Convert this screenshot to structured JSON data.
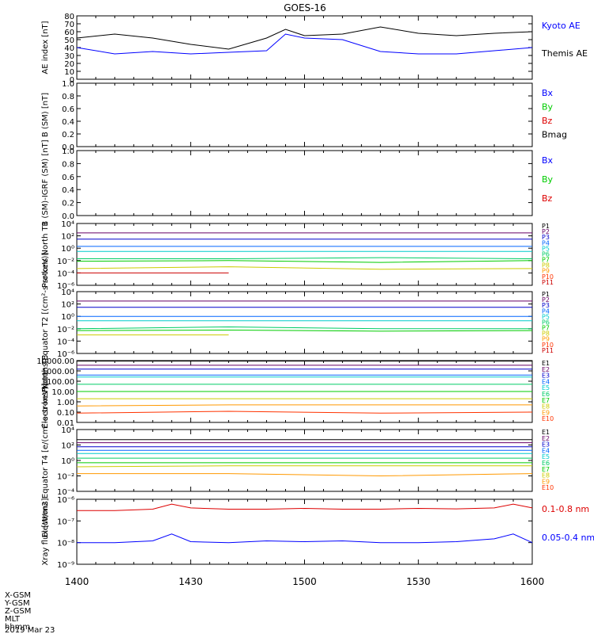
{
  "title": "GOES-16",
  "footer": {
    "row_labels": [
      "X-GSM",
      "Y-GSM",
      "Z-GSM",
      "MLT",
      "hhmm"
    ],
    "date": "2019 Mar 23"
  },
  "x_ticks": [
    "1400",
    "1430",
    "1500",
    "1530",
    "1600"
  ],
  "colors": {
    "black": "#000000",
    "blue": "#0000ff",
    "green": "#00cc00",
    "red": "#dd0000",
    "P1": "#000000",
    "P2": "#660066",
    "P3": "#0000cc",
    "P4": "#0066ff",
    "P5": "#00cccc",
    "P6": "#00cc66",
    "P7": "#00cc00",
    "P8": "#cccc00",
    "P9": "#ff9900",
    "P10": "#ff3300",
    "P11": "#cc0000"
  },
  "chart_data": [
    {
      "type": "line",
      "ylabel": "AE index [nT]",
      "ylim": [
        0,
        80
      ],
      "y_ticks": [
        "0",
        "10",
        "20",
        "30",
        "40",
        "50",
        "60",
        "70",
        "80"
      ],
      "legend": [
        "Kyoto AE",
        "Themis AE"
      ],
      "x_minutes": [
        0,
        10,
        20,
        30,
        40,
        50,
        55,
        60,
        70,
        80,
        90,
        100,
        110,
        120
      ],
      "series": [
        {
          "name": "Themis AE",
          "color_key": "black",
          "values": [
            52,
            57,
            52,
            44,
            38,
            52,
            63,
            55,
            57,
            66,
            58,
            55,
            58,
            60
          ]
        },
        {
          "name": "Kyoto AE",
          "color_key": "blue",
          "values": [
            40,
            32,
            35,
            32,
            34,
            36,
            57,
            52,
            50,
            35,
            32,
            32,
            36,
            40
          ]
        }
      ]
    },
    {
      "type": "line",
      "ylabel": "B (SM) [nT]",
      "ylim": [
        0,
        1
      ],
      "y_ticks": [
        "0.0",
        "0.2",
        "0.4",
        "0.6",
        "0.8",
        "1.0"
      ],
      "legend": [
        "Bx",
        "By",
        "Bz",
        "Bmag"
      ],
      "series": []
    },
    {
      "type": "line",
      "ylabel": "B (SM)-IGRF (SM) [nT]",
      "ylim": [
        0,
        1
      ],
      "y_ticks": [
        "0.0",
        "0.2",
        "0.4",
        "0.6",
        "0.8",
        "1.0"
      ],
      "legend": [
        "Bx",
        "By",
        "Bz"
      ],
      "series": []
    },
    {
      "type": "line",
      "ylabel": "Protons North T1",
      "scale": "log",
      "ylim": [
        1e-06,
        10000.0
      ],
      "y_ticks": [
        "10⁻⁶",
        "10⁻⁴",
        "10⁻²",
        "10⁰",
        "10²",
        "10⁴"
      ],
      "legend": [
        "P1",
        "P2",
        "P3",
        "P4",
        "P5",
        "P6",
        "P7",
        "P8",
        "P9",
        "P10",
        "P11"
      ],
      "series": [
        {
          "name": "P2",
          "values": [
            300,
            300,
            300,
            300
          ]
        },
        {
          "name": "P3",
          "values": [
            30,
            30,
            30,
            30
          ]
        },
        {
          "name": "P4",
          "values": [
            2,
            2,
            2,
            2
          ]
        },
        {
          "name": "P5",
          "values": [
            0.3,
            0.3,
            0.3,
            0.3
          ]
        },
        {
          "name": "P6",
          "values": [
            0.02,
            0.02,
            0.03,
            0.02
          ]
        },
        {
          "name": "P7",
          "values": [
            0.008,
            0.01,
            0.005,
            0.01
          ]
        },
        {
          "name": "P8",
          "values": [
            0.0005,
            0.001,
            0.0004,
            0.0005
          ]
        },
        {
          "name": "P11",
          "values": [
            0.0001,
            0.0001,
            null,
            null
          ]
        }
      ]
    },
    {
      "type": "line",
      "ylabel": "Protons Equator T2 [(cm²-s-sr-keV)]",
      "scale": "log",
      "ylim": [
        1e-06,
        10000.0
      ],
      "y_ticks": [
        "10⁻⁶",
        "10⁻⁴",
        "10⁻²",
        "10⁰",
        "10²",
        "10⁴"
      ],
      "legend": [
        "P1",
        "P2",
        "P3",
        "P4",
        "P5",
        "P6",
        "P7",
        "P8",
        "P9",
        "P10",
        "P11"
      ],
      "series": [
        {
          "name": "P2",
          "values": [
            300,
            300,
            300,
            300
          ]
        },
        {
          "name": "P3",
          "values": [
            30,
            30,
            30,
            30
          ]
        },
        {
          "name": "P4",
          "values": [
            1,
            1,
            1,
            1
          ]
        },
        {
          "name": "P5",
          "values": [
            0.2,
            0.2,
            0.2,
            0.2
          ]
        },
        {
          "name": "P6",
          "values": [
            0.01,
            0.02,
            0.01,
            0.01
          ]
        },
        {
          "name": "P7",
          "values": [
            0.005,
            0.006,
            0.004,
            0.005
          ]
        },
        {
          "name": "P8",
          "values": [
            0.001,
            0.001,
            null,
            null
          ]
        }
      ]
    },
    {
      "type": "line",
      "ylabel": "Electrons North T3",
      "scale": "log",
      "ylim": [
        0.01,
        10000
      ],
      "y_ticks": [
        "0.01",
        "0.10",
        "1.00",
        "10.00",
        "100.00",
        "1000.00",
        "10000.00"
      ],
      "legend": [
        "E1",
        "E2",
        "E3",
        "E4",
        "E5",
        "E6",
        "E7",
        "E8",
        "E9",
        "E10"
      ],
      "series": [
        {
          "name": "E1",
          "values": [
            9000,
            9000,
            9000,
            9000
          ]
        },
        {
          "name": "E2",
          "values": [
            3500,
            3500,
            3500,
            3500
          ]
        },
        {
          "name": "E3",
          "values": [
            1500,
            1500,
            1500,
            1500
          ]
        },
        {
          "name": "E4",
          "values": [
            400,
            400,
            400,
            400
          ]
        },
        {
          "name": "E5",
          "values": [
            250,
            250,
            250,
            250
          ]
        },
        {
          "name": "E6",
          "values": [
            50,
            50,
            50,
            50
          ]
        },
        {
          "name": "E7",
          "values": [
            10,
            10,
            10,
            10
          ]
        },
        {
          "name": "E8",
          "values": [
            2,
            2,
            2,
            2
          ]
        },
        {
          "name": "E9",
          "values": [
            0.4,
            0.5,
            0.5,
            0.5
          ]
        },
        {
          "name": "E10",
          "values": [
            0.08,
            0.12,
            0.08,
            0.1
          ]
        }
      ]
    },
    {
      "type": "line",
      "ylabel": "Electrons Equator T4 [e/(cm²-s-sr-keV)]",
      "scale": "log",
      "ylim": [
        0.0001,
        10000.0
      ],
      "y_ticks": [
        "10⁻⁴",
        "10⁻²",
        "10⁰",
        "10²",
        "10⁴"
      ],
      "legend": [
        "E1",
        "E2",
        "E3",
        "E4",
        "E5",
        "E6",
        "E7",
        "E8",
        "E9",
        "E10"
      ],
      "series": [
        {
          "name": "E1",
          "values": [
            500,
            500,
            500,
            500
          ]
        },
        {
          "name": "E2",
          "values": [
            200,
            200,
            200,
            200
          ]
        },
        {
          "name": "E3",
          "values": [
            60,
            60,
            60,
            60
          ]
        },
        {
          "name": "E4",
          "values": [
            20,
            20,
            20,
            20
          ]
        },
        {
          "name": "E5",
          "values": [
            8,
            8,
            8,
            8
          ]
        },
        {
          "name": "E6",
          "values": [
            2,
            2,
            2,
            2
          ]
        },
        {
          "name": "E7",
          "values": [
            0.5,
            0.5,
            0.5,
            0.5
          ]
        },
        {
          "name": "E8",
          "values": [
            0.15,
            0.2,
            0.2,
            0.2
          ]
        },
        {
          "name": "E9",
          "values": [
            0.02,
            0.02,
            0.01,
            0.02
          ]
        }
      ]
    },
    {
      "type": "line",
      "ylabel": "Xray flux [W/m2]",
      "scale": "log",
      "ylim": [
        1e-09,
        1e-06
      ],
      "y_ticks": [
        "10⁻⁹",
        "10⁻⁸",
        "10⁻⁷",
        "10⁻⁶"
      ],
      "legend": [
        "0.1-0.8 nm",
        "0.05-0.4 nm"
      ],
      "x_minutes": [
        0,
        10,
        20,
        25,
        30,
        40,
        50,
        60,
        70,
        80,
        90,
        100,
        110,
        115,
        120
      ],
      "series": [
        {
          "name": "0.1-0.8 nm",
          "color_key": "red",
          "values": [
            3e-07,
            3e-07,
            3.5e-07,
            6e-07,
            4e-07,
            3.5e-07,
            3.5e-07,
            3.8e-07,
            3.5e-07,
            3.5e-07,
            3.8e-07,
            3.6e-07,
            4e-07,
            6e-07,
            4e-07
          ]
        },
        {
          "name": "0.05-0.4 nm",
          "color_key": "blue",
          "values": [
            1e-08,
            1e-08,
            1.2e-08,
            2.5e-08,
            1.1e-08,
            1e-08,
            1.2e-08,
            1.1e-08,
            1.2e-08,
            1e-08,
            1e-08,
            1.1e-08,
            1.5e-08,
            2.5e-08,
            1e-08
          ]
        }
      ]
    }
  ]
}
